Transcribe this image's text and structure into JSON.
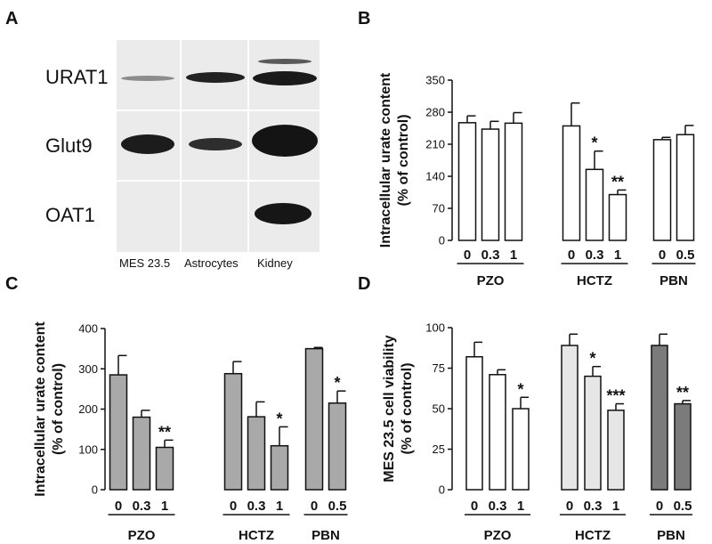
{
  "panel_letters": {
    "a": "A",
    "b": "B",
    "c": "C",
    "d": "D"
  },
  "blot": {
    "rows": [
      "URAT1",
      "Glut9",
      "OAT1"
    ],
    "lanes": [
      "MES 23.5",
      "Astrocytes",
      "Kidney"
    ]
  },
  "colors": {
    "white_bar": "#ffffff",
    "light_gray_bar": "#e6e6e6",
    "gray_bar": "#a9a9a9",
    "dark_gray_bar": "#7b7b7b",
    "axis": "#111111"
  },
  "chart_data": [
    {
      "panel": "B",
      "type": "bar",
      "ylabel": [
        "Intracellular urate content",
        "(% of control)"
      ],
      "ylim": [
        0,
        350
      ],
      "yticks": [
        0,
        70,
        140,
        210,
        280,
        350
      ],
      "groups": [
        {
          "name": "PZO",
          "categories": [
            "0",
            "0.3",
            "1"
          ],
          "values": [
            257,
            243,
            256
          ],
          "errors": [
            15,
            17,
            23
          ],
          "sig": [
            "",
            "",
            ""
          ],
          "fill": "#ffffff"
        },
        {
          "name": "HCTZ",
          "categories": [
            "0",
            "0.3",
            "1"
          ],
          "values": [
            250,
            155,
            100
          ],
          "errors": [
            50,
            40,
            10
          ],
          "sig": [
            "",
            "*",
            "**"
          ],
          "fill": "#ffffff"
        },
        {
          "name": "PBN",
          "categories": [
            "0",
            "0.5"
          ],
          "values": [
            220,
            231
          ],
          "errors": [
            5,
            20
          ],
          "sig": [
            "",
            ""
          ],
          "fill": "#ffffff"
        }
      ]
    },
    {
      "panel": "C",
      "type": "bar",
      "ylabel": [
        "Intracellular urate content",
        "(% of control)"
      ],
      "ylim": [
        0,
        400
      ],
      "yticks": [
        0,
        100,
        200,
        300,
        400
      ],
      "groups": [
        {
          "name": "PZO",
          "categories": [
            "0",
            "0.3",
            "1"
          ],
          "values": [
            285,
            180,
            105
          ],
          "errors": [
            48,
            17,
            18
          ],
          "sig": [
            "",
            "",
            "**"
          ],
          "fill": "#a9a9a9"
        },
        {
          "name": "HCTZ",
          "categories": [
            "0",
            "0.3",
            "1"
          ],
          "values": [
            288,
            181,
            109
          ],
          "errors": [
            30,
            37,
            47
          ],
          "sig": [
            "",
            "",
            "*"
          ],
          "fill": "#a9a9a9"
        },
        {
          "name": "PBN",
          "categories": [
            "0",
            "0.5"
          ],
          "values": [
            350,
            215
          ],
          "errors": [
            3,
            30
          ],
          "sig": [
            "",
            "*"
          ],
          "fill": "#a9a9a9"
        }
      ]
    },
    {
      "panel": "D",
      "type": "bar",
      "ylabel": [
        "MES 23.5 cell viability",
        "(% of control)"
      ],
      "ylim": [
        0,
        100
      ],
      "yticks": [
        0,
        25,
        50,
        75,
        100
      ],
      "groups": [
        {
          "name": "PZO",
          "categories": [
            "0",
            "0.3",
            "1"
          ],
          "values": [
            82,
            71,
            50
          ],
          "errors": [
            9,
            3,
            7
          ],
          "sig": [
            "",
            "",
            "*"
          ],
          "fill": "#ffffff"
        },
        {
          "name": "HCTZ",
          "categories": [
            "0",
            "0.3",
            "1"
          ],
          "values": [
            89,
            70,
            49
          ],
          "errors": [
            7,
            6,
            4
          ],
          "sig": [
            "",
            "*",
            "***"
          ],
          "fill": "#e6e6e6"
        },
        {
          "name": "PBN",
          "categories": [
            "0",
            "0.5"
          ],
          "values": [
            89,
            53
          ],
          "errors": [
            7,
            2
          ],
          "sig": [
            "",
            "**"
          ],
          "fill": "#7b7b7b"
        }
      ]
    }
  ]
}
